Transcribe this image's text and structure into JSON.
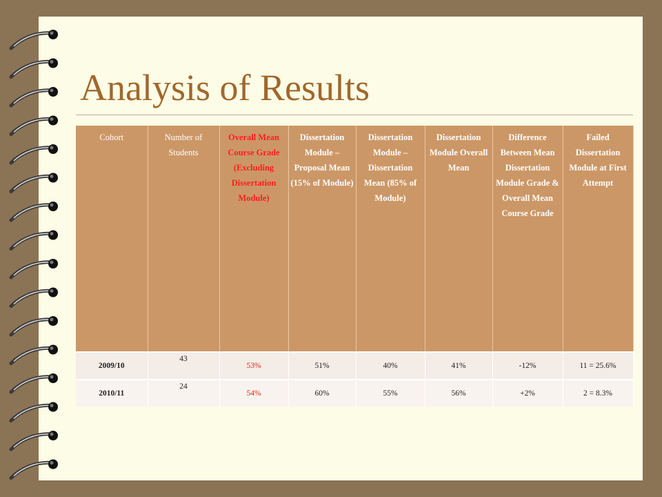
{
  "title": "Analysis of Results",
  "table": {
    "headers": [
      "Cohort",
      "Number of Students",
      "Overall Mean Course Grade (Excluding Dissertation Module)",
      "Dissertation Module – Proposal Mean (15% of Module)",
      "Dissertation Module – Dissertation Mean (85% of Module)",
      "Dissertation Module Overall Mean",
      "Difference Between Mean Dissertation Module Grade & Overall Mean Course Grade",
      "Failed Dissertation Module at First Attempt"
    ],
    "rows": [
      {
        "cohort": "2009/10",
        "students": "43",
        "overall": "53%",
        "proposal": "51%",
        "dissertation": "40%",
        "module_mean": "41%",
        "difference": "-12%",
        "failed": "11 = 25.6%"
      },
      {
        "cohort": "2010/11",
        "students": "24",
        "overall": "54%",
        "proposal": "60%",
        "dissertation": "55%",
        "module_mean": "56%",
        "difference": "+2%",
        "failed": "2 = 8.3%"
      }
    ]
  },
  "colors": {
    "background": "#8b7355",
    "page": "#fdfce6",
    "title": "#a0682c",
    "header_fill": "#cc9766",
    "highlight": "#ff1f1f"
  }
}
